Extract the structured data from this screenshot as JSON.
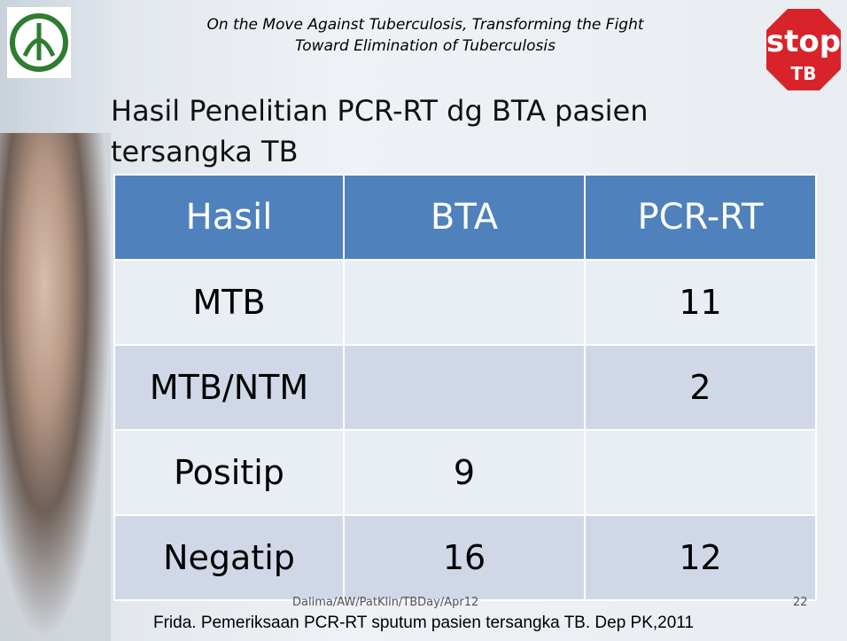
{
  "header": {
    "tagline_1": "On the Move Against Tuberculosis, Transforming the Fight",
    "tagline_2": "Toward Elimination of Tuberculosis",
    "stop_logo": {
      "word": "stop",
      "tb": "TB"
    }
  },
  "title": "Hasil Penelitian PCR-RT dg BTA pasien tersangka TB",
  "table": {
    "columns": [
      "Hasil",
      "BTA",
      "PCR-RT"
    ],
    "rows": [
      [
        "MTB",
        null,
        "11"
      ],
      [
        "MTB/NTM",
        null,
        "2"
      ],
      [
        "Positip",
        "9",
        null
      ],
      [
        "Negatip",
        "16",
        "12"
      ]
    ]
  },
  "footer": {
    "slide_credit": "Dalima/AW/PatKlin/TBDay/Apr12",
    "page_number": "22",
    "source": "Frida. Pemeriksaan PCR-RT sputum pasien tersangka TB. Dep PK,2011"
  }
}
